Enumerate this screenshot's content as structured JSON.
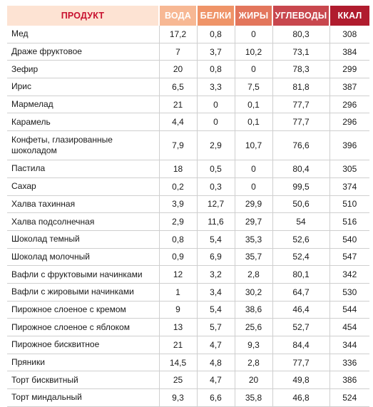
{
  "table": {
    "headers": [
      "ПРОДУКТ",
      "ВОДА",
      "БЕЛКИ",
      "ЖИРЫ",
      "УГЛЕВОДЫ",
      "ККАЛ"
    ],
    "header_colors": [
      "#fde3d3",
      "#f7b894",
      "#ef9468",
      "#e3765c",
      "#c8474e",
      "#b01c2e"
    ],
    "rows": [
      [
        "Мед",
        "17,2",
        "0,8",
        "0",
        "80,3",
        "308"
      ],
      [
        "Драже фруктовое",
        "7",
        "3,7",
        "10,2",
        "73,1",
        "384"
      ],
      [
        "Зефир",
        "20",
        "0,8",
        "0",
        "78,3",
        "299"
      ],
      [
        "Ирис",
        "6,5",
        "3,3",
        "7,5",
        "81,8",
        "387"
      ],
      [
        "Мармелад",
        "21",
        "0",
        "0,1",
        "77,7",
        "296"
      ],
      [
        "Карамель",
        "4,4",
        "0",
        "0,1",
        "77,7",
        "296"
      ],
      [
        "Конфеты, глазированные шоколадом",
        "7,9",
        "2,9",
        "10,7",
        "76,6",
        "396"
      ],
      [
        "Пастила",
        "18",
        "0,5",
        "0",
        "80,4",
        "305"
      ],
      [
        "Сахар",
        "0,2",
        "0,3",
        "0",
        "99,5",
        "374"
      ],
      [
        "Халва тахинная",
        "3,9",
        "12,7",
        "29,9",
        "50,6",
        "510"
      ],
      [
        "Халва подсолнечная",
        "2,9",
        "11,6",
        "29,7",
        "54",
        "516"
      ],
      [
        "Шоколад темный",
        "0,8",
        "5,4",
        "35,3",
        "52,6",
        "540"
      ],
      [
        "Шоколад молочный",
        "0,9",
        "6,9",
        "35,7",
        "52,4",
        "547"
      ],
      [
        "Вафли с фруктовыми начинками",
        "12",
        "3,2",
        "2,8",
        "80,1",
        "342"
      ],
      [
        "Вафли с жировыми начинками",
        "1",
        "3,4",
        "30,2",
        "64,7",
        "530"
      ],
      [
        "Пирожное слоеное с кремом",
        "9",
        "5,4",
        "38,6",
        "46,4",
        "544"
      ],
      [
        "Пирожное слоеное с яблоком",
        "13",
        "5,7",
        "25,6",
        "52,7",
        "454"
      ],
      [
        "Пирожное бисквитное",
        "21",
        "4,7",
        "9,3",
        "84,4",
        "344"
      ],
      [
        "Пряники",
        "14,5",
        "4,8",
        "2,8",
        "77,7",
        "336"
      ],
      [
        "Торт бисквитный",
        "25",
        "4,7",
        "20",
        "49,8",
        "386"
      ],
      [
        "Торт миндальный",
        "9,3",
        "6,6",
        "35,8",
        "46,8",
        "524"
      ]
    ]
  }
}
